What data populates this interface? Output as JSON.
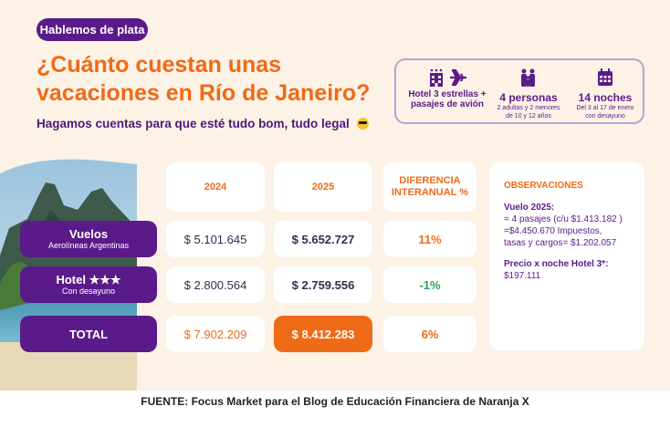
{
  "header": {
    "pill": "Hablemos de plata",
    "title": "¿Cuánto cuestan unas vacaciones en Río de Janeiro?",
    "subtitle": "Hagamos cuentas para que esté tudo bom, tudo legal"
  },
  "info": {
    "hotel_line1": "Hotel 3 estrellas +",
    "hotel_line2": "pasajes de avión",
    "people_big": "4 personas",
    "people_small1": "2 adultas y 2 menores",
    "people_small2": "de 10 y 12 años",
    "nights_big": "14 noches",
    "nights_small1": "Del 3 al 17 de enero",
    "nights_small2": "con desayuno"
  },
  "table": {
    "headers": {
      "y2024": "2024",
      "y2025": "2025",
      "diff1": "DIFERENCIA",
      "diff2": "INTERANUAL %"
    },
    "rows": [
      {
        "label": "Vuelos",
        "sublabel": "Aerolíneas Argentinas",
        "v2024": "$ 5.101.645",
        "v2025": "$ 5.652.727",
        "diff": "11%"
      },
      {
        "label": "Hotel ★★★",
        "sublabel": "Con desayuno",
        "v2024": "$ 2.800.564",
        "v2025": "$ 2.759.556",
        "diff": "-1%"
      }
    ],
    "total": {
      "label": "TOTAL",
      "v2024": "$ 7.902.209",
      "v2025": "$ 8.412.283",
      "diff": "6%"
    }
  },
  "observations": {
    "title": "OBSERVACIONES",
    "vuelo_title": "Vuelo 2025:",
    "vuelo_line1": "= 4 pasajes (c/u $1.413.182 )",
    "vuelo_line2": "=$4.450.670 Impuestos,",
    "vuelo_line3": "tasas y cargos= $1.202.057",
    "precio_title": "Precio x noche Hotel 3*:",
    "precio_value": "$197.111"
  },
  "footer": "FUENTE: Focus Market para el Blog de Educación Financiera de Naranja X",
  "colors": {
    "purple": "#5b1a8a",
    "orange": "#ef6a16",
    "green": "#27a35a",
    "cream": "#fdf2e6"
  }
}
